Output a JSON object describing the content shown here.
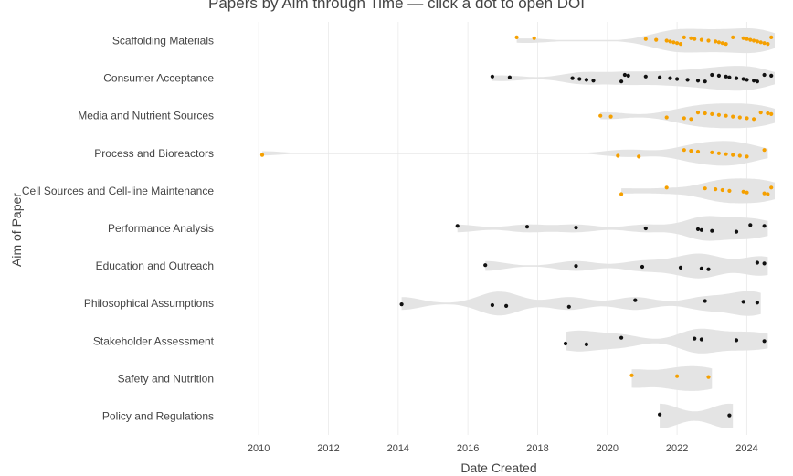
{
  "chart_data": {
    "type": "scatter",
    "title": "Papers by Aim through Time — click a dot to open DOI",
    "xlabel": "Date Created",
    "ylabel": "Aim of Paper",
    "xlim": [
      2009.0,
      2024.8
    ],
    "x_ticks": [
      "2010",
      "2012",
      "2014",
      "2016",
      "2018",
      "2020",
      "2022",
      "2024"
    ],
    "grid": "vertical",
    "colors": {
      "orange": "#f5a000",
      "black": "#111111",
      "violin": "#e4e4e4",
      "grid": "#eeeeee"
    },
    "categories": [
      "Scaffolding Materials",
      "Consumer Acceptance",
      "Media and Nutrient Sources",
      "Process and Bioreactors",
      "Cell Sources and Cell-line Maintenance",
      "Performance Analysis",
      "Education and Outreach",
      "Philosophical Assumptions",
      "Stakeholder Assessment",
      "Safety and Nutrition",
      "Policy and Regulations"
    ],
    "series": [
      {
        "category": "Scaffolding Materials",
        "color": "orange",
        "x": [
          2017.4,
          2017.9,
          2021.1,
          2021.4,
          2021.7,
          2021.8,
          2021.9,
          2022.0,
          2022.1,
          2022.2,
          2022.4,
          2022.5,
          2022.7,
          2022.9,
          2023.1,
          2023.2,
          2023.3,
          2023.4,
          2023.6,
          2023.9,
          2024.0,
          2024.1,
          2024.2,
          2024.3,
          2024.4,
          2024.5,
          2024.6,
          2024.7
        ]
      },
      {
        "category": "Consumer Acceptance",
        "color": "black",
        "x": [
          2016.7,
          2017.2,
          2019.0,
          2019.2,
          2019.4,
          2019.6,
          2020.4,
          2020.5,
          2020.6,
          2021.1,
          2021.5,
          2021.8,
          2022.0,
          2022.3,
          2022.6,
          2022.8,
          2023.0,
          2023.2,
          2023.4,
          2023.5,
          2023.7,
          2023.9,
          2024.0,
          2024.2,
          2024.3,
          2024.5,
          2024.7
        ]
      },
      {
        "category": "Media and Nutrient Sources",
        "color": "orange",
        "x": [
          2019.8,
          2020.1,
          2021.7,
          2022.2,
          2022.4,
          2022.6,
          2022.8,
          2023.0,
          2023.2,
          2023.4,
          2023.6,
          2023.8,
          2024.0,
          2024.2,
          2024.4,
          2024.6,
          2024.7
        ]
      },
      {
        "category": "Process and Bioreactors",
        "color": "orange",
        "x": [
          2010.1,
          2020.3,
          2020.9,
          2022.2,
          2022.4,
          2022.6,
          2023.0,
          2023.2,
          2023.4,
          2023.6,
          2023.8,
          2024.0,
          2024.5
        ]
      },
      {
        "category": "Cell Sources and Cell-line Maintenance",
        "color": "orange",
        "x": [
          2020.4,
          2021.7,
          2022.8,
          2023.1,
          2023.3,
          2023.5,
          2023.9,
          2024.0,
          2024.5,
          2024.6,
          2024.7
        ]
      },
      {
        "category": "Performance Analysis",
        "color": "black",
        "x": [
          2015.7,
          2017.7,
          2019.1,
          2021.1,
          2022.6,
          2022.7,
          2023.0,
          2023.7,
          2024.1,
          2024.5
        ]
      },
      {
        "category": "Education and Outreach",
        "color": "black",
        "x": [
          2016.5,
          2019.1,
          2021.0,
          2022.1,
          2022.7,
          2022.9,
          2024.3,
          2024.5
        ]
      },
      {
        "category": "Philosophical Assumptions",
        "color": "black",
        "x": [
          2014.1,
          2016.7,
          2017.1,
          2018.9,
          2020.8,
          2022.8,
          2023.9,
          2024.3
        ]
      },
      {
        "category": "Stakeholder Assessment",
        "color": "black",
        "x": [
          2018.8,
          2019.4,
          2020.4,
          2022.5,
          2022.7,
          2023.7,
          2024.5
        ]
      },
      {
        "category": "Safety and Nutrition",
        "color": "orange",
        "x": [
          2020.7,
          2022.0,
          2022.9
        ]
      },
      {
        "category": "Policy and Regulations",
        "color": "black",
        "x": [
          2021.5,
          2023.5
        ]
      }
    ]
  }
}
